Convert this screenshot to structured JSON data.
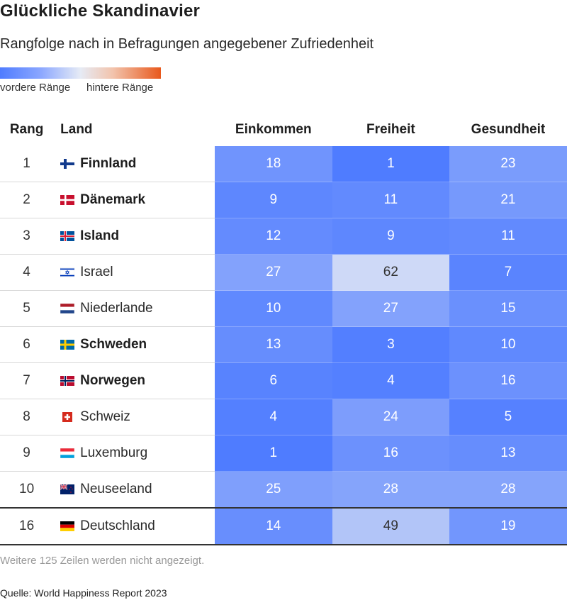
{
  "title": "Glückliche Skandinavier",
  "subtitle": "Rangfolge nach in Befragungen angegebener Zufriedenheit",
  "legend": {
    "left": "vordere Ränge",
    "right": "hintere Ränge"
  },
  "colors": {
    "good": "#4f7cff",
    "mid": "#e6ebf5",
    "bad": "#e8581c"
  },
  "note": "Weitere 125 Zeilen werden nicht angezeigt.",
  "source": "Quelle: World Happiness Report 2023",
  "chart_data": {
    "type": "table",
    "columns": [
      "Rang",
      "Land",
      "Einkommen",
      "Freiheit",
      "Gesundheit"
    ],
    "rows": [
      {
        "rank": "1",
        "country": "Finnland",
        "flag": "finland-flag",
        "bold": true,
        "values": [
          18,
          1,
          23
        ]
      },
      {
        "rank": "2",
        "country": "Dänemark",
        "flag": "denmark-flag",
        "bold": true,
        "values": [
          9,
          11,
          21
        ]
      },
      {
        "rank": "3",
        "country": "Island",
        "flag": "iceland-flag",
        "bold": true,
        "values": [
          12,
          9,
          11
        ]
      },
      {
        "rank": "4",
        "country": "Israel",
        "flag": "israel-flag",
        "bold": false,
        "values": [
          27,
          62,
          7
        ]
      },
      {
        "rank": "5",
        "country": "Niederlande",
        "flag": "netherlands-flag",
        "bold": false,
        "values": [
          10,
          27,
          15
        ]
      },
      {
        "rank": "6",
        "country": "Schweden",
        "flag": "sweden-flag",
        "bold": true,
        "values": [
          13,
          3,
          10
        ]
      },
      {
        "rank": "7",
        "country": "Norwegen",
        "flag": "norway-flag",
        "bold": true,
        "values": [
          6,
          4,
          16
        ]
      },
      {
        "rank": "8",
        "country": "Schweiz",
        "flag": "switzerland-flag",
        "bold": false,
        "values": [
          4,
          24,
          5
        ]
      },
      {
        "rank": "9",
        "country": "Luxemburg",
        "flag": "luxembourg-flag",
        "bold": false,
        "values": [
          1,
          16,
          13
        ]
      },
      {
        "rank": "10",
        "country": "Neuseeland",
        "flag": "new-zealand-flag",
        "bold": false,
        "values": [
          25,
          28,
          28
        ]
      },
      {
        "rank": "16",
        "country": "Deutschland",
        "flag": "germany-flag",
        "bold": false,
        "values": [
          14,
          49,
          19
        ]
      }
    ]
  }
}
